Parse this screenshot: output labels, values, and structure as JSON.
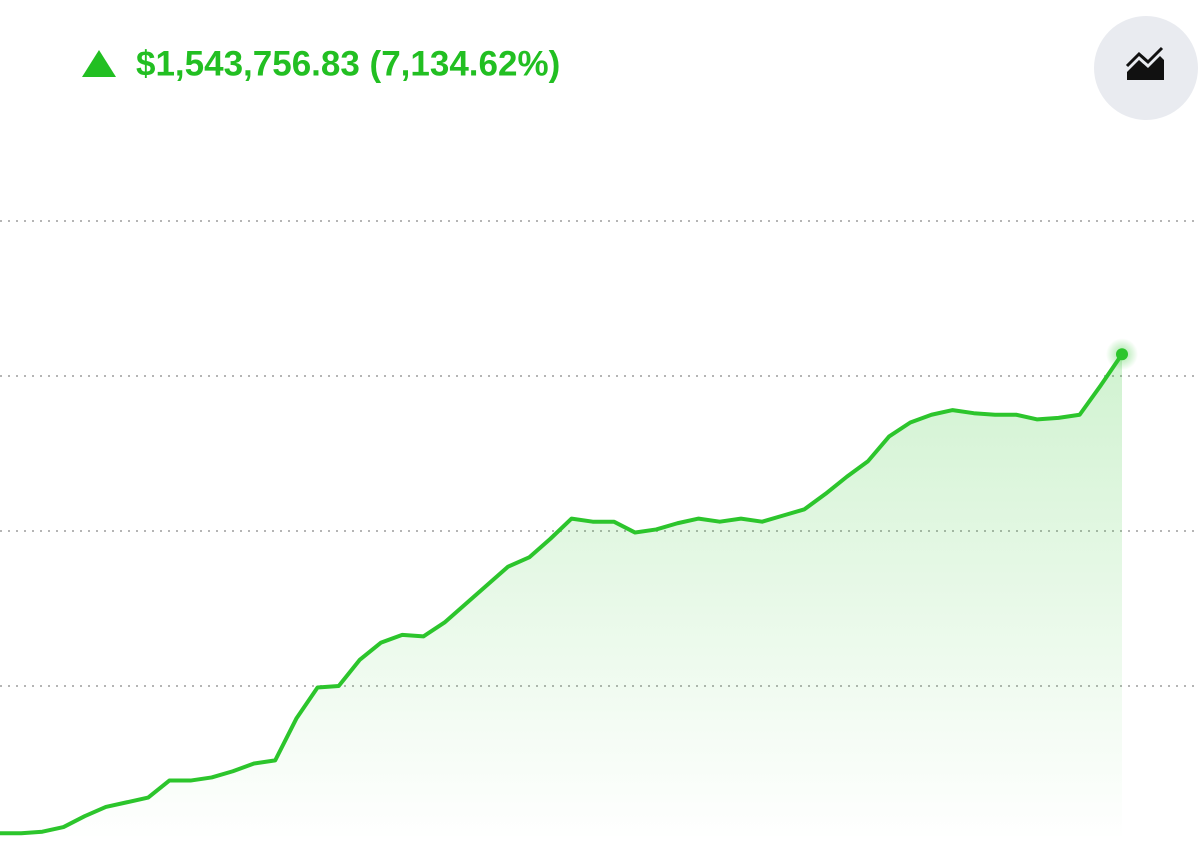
{
  "header": {
    "change": "$1,543,756.83 (7,134.62%)"
  },
  "chart_data": {
    "type": "line",
    "series": [
      {
        "color": "#2cc52c",
        "values": [
          0.05,
          0.05,
          0.06,
          0.09,
          0.16,
          0.22,
          0.25,
          0.28,
          0.39,
          0.39,
          0.41,
          0.45,
          0.5,
          0.52,
          0.79,
          0.99,
          1.0,
          1.17,
          1.28,
          1.33,
          1.32,
          1.41,
          1.53,
          1.65,
          1.77,
          1.83,
          1.95,
          2.08,
          2.06,
          2.06,
          1.99,
          2.01,
          2.05,
          2.08,
          2.06,
          2.08,
          2.06,
          2.1,
          2.14,
          2.24,
          2.35,
          2.45,
          2.61,
          2.7,
          2.75,
          2.78,
          2.76,
          2.75,
          2.75,
          2.72,
          2.73,
          2.75,
          2.94,
          3.14
        ]
      }
    ],
    "ylim": [
      0,
      5.4
    ],
    "yticks": [
      1,
      2,
      3,
      4
    ],
    "grid": true
  }
}
